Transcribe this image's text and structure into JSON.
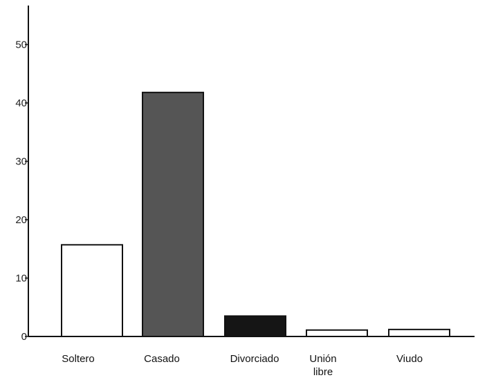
{
  "chart_data": {
    "type": "bar",
    "categories": [
      "Soltero",
      "Casado",
      "Divorciado",
      "Unión libre",
      "Viudo"
    ],
    "category_lines": [
      [
        "Soltero"
      ],
      [
        "Casado"
      ],
      [
        "Divorciado"
      ],
      [
        "Unión",
        "libre"
      ],
      [
        "Viudo"
      ]
    ],
    "values": [
      15.7,
      41.8,
      3.5,
      1.1,
      1.2
    ],
    "bar_fills": [
      "#ffffff",
      "#555555",
      "#151515",
      "#ffffff",
      "#ffffff"
    ],
    "yticks": [
      0,
      10,
      20,
      30,
      40,
      50
    ],
    "ylim": [
      0,
      55
    ],
    "title": "",
    "xlabel": "",
    "ylabel": "",
    "grid": false
  }
}
